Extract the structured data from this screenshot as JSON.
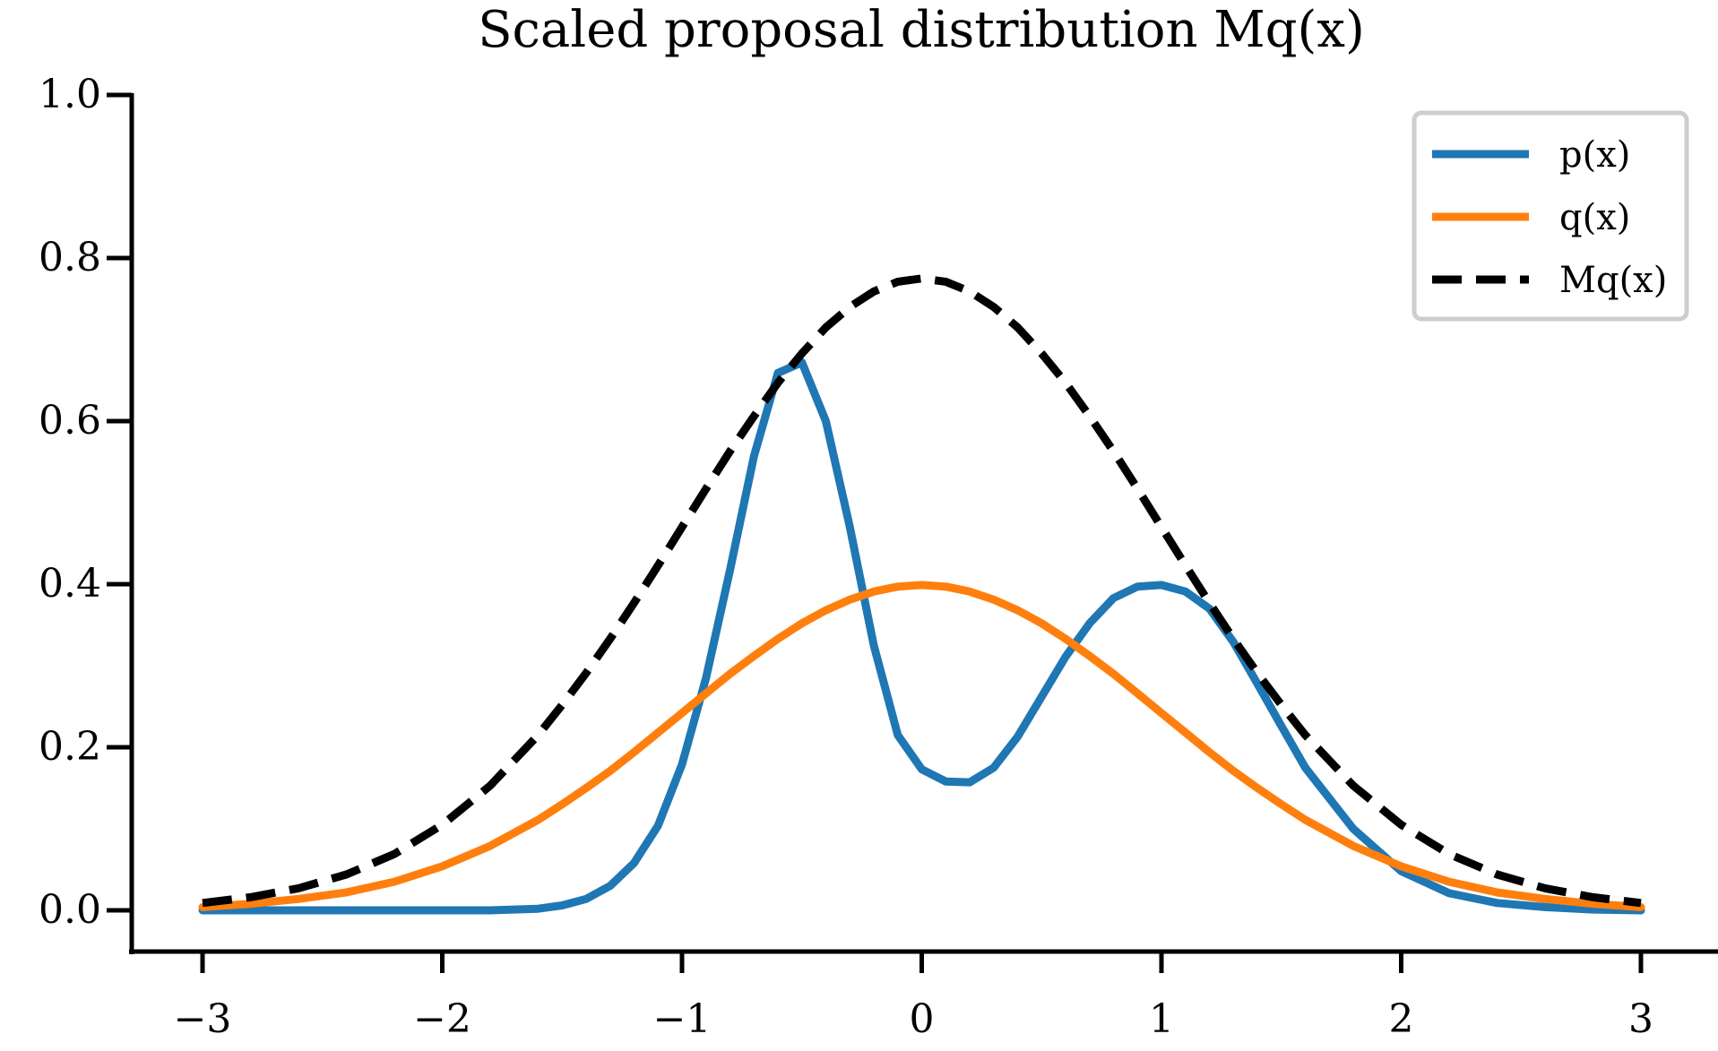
{
  "chart_data": {
    "type": "line",
    "title": "Scaled proposal distribution Mq(x)",
    "xlabel": "",
    "ylabel": "",
    "xlim": [
      -3.3,
      3.2
    ],
    "ylim": [
      -0.05,
      1.0
    ],
    "x_ticks": [
      -3,
      -2,
      -1,
      0,
      1,
      2,
      3
    ],
    "x_tick_labels": [
      "−3",
      "−2",
      "−1",
      "0",
      "1",
      "2",
      "3"
    ],
    "y_ticks": [
      0.0,
      0.2,
      0.4,
      0.6,
      0.8,
      1.0
    ],
    "y_tick_labels": [
      "0.0",
      "0.2",
      "0.4",
      "0.6",
      "0.8",
      "1.0"
    ],
    "grid": false,
    "legend_position": "top-right",
    "x": [
      -3.0,
      -2.8,
      -2.6,
      -2.4,
      -2.2,
      -2.0,
      -1.8,
      -1.6,
      -1.5,
      -1.4,
      -1.3,
      -1.2,
      -1.1,
      -1.0,
      -0.9,
      -0.8,
      -0.7,
      -0.6,
      -0.5,
      -0.4,
      -0.3,
      -0.2,
      -0.1,
      0.0,
      0.1,
      0.2,
      0.3,
      0.4,
      0.5,
      0.6,
      0.7,
      0.8,
      0.9,
      1.0,
      1.1,
      1.2,
      1.3,
      1.4,
      1.5,
      1.6,
      1.8,
      2.0,
      2.2,
      2.4,
      2.6,
      2.8,
      3.0
    ],
    "series": [
      {
        "name": "p(x)",
        "color": "#1f77b4",
        "style": "solid",
        "values": [
          0.0,
          0.0,
          0.0,
          0.0,
          0.0,
          0.0,
          0.0,
          0.002,
          0.006,
          0.014,
          0.03,
          0.058,
          0.104,
          0.179,
          0.285,
          0.417,
          0.557,
          0.659,
          0.672,
          0.6,
          0.47,
          0.325,
          0.215,
          0.173,
          0.158,
          0.157,
          0.175,
          0.213,
          0.262,
          0.311,
          0.352,
          0.383,
          0.397,
          0.399,
          0.391,
          0.37,
          0.329,
          0.278,
          0.226,
          0.175,
          0.1,
          0.048,
          0.021,
          0.009,
          0.004,
          0.001,
          0.0
        ]
      },
      {
        "name": "q(x)",
        "color": "#ff7f0e",
        "style": "solid",
        "values": [
          0.004,
          0.008,
          0.014,
          0.022,
          0.035,
          0.054,
          0.079,
          0.111,
          0.13,
          0.15,
          0.171,
          0.194,
          0.218,
          0.242,
          0.266,
          0.29,
          0.312,
          0.333,
          0.352,
          0.368,
          0.381,
          0.391,
          0.397,
          0.399,
          0.397,
          0.391,
          0.381,
          0.368,
          0.352,
          0.333,
          0.312,
          0.29,
          0.266,
          0.242,
          0.218,
          0.194,
          0.171,
          0.15,
          0.13,
          0.111,
          0.079,
          0.054,
          0.035,
          0.022,
          0.014,
          0.008,
          0.004
        ]
      },
      {
        "name": "Mq(x)",
        "color": "#000000",
        "style": "dashed",
        "values": [
          0.009,
          0.016,
          0.027,
          0.044,
          0.069,
          0.105,
          0.153,
          0.215,
          0.252,
          0.291,
          0.333,
          0.377,
          0.423,
          0.47,
          0.517,
          0.563,
          0.606,
          0.647,
          0.683,
          0.715,
          0.74,
          0.759,
          0.771,
          0.775,
          0.771,
          0.759,
          0.74,
          0.715,
          0.683,
          0.647,
          0.606,
          0.563,
          0.517,
          0.47,
          0.423,
          0.377,
          0.333,
          0.291,
          0.252,
          0.215,
          0.153,
          0.105,
          0.069,
          0.044,
          0.027,
          0.016,
          0.009
        ]
      }
    ]
  }
}
